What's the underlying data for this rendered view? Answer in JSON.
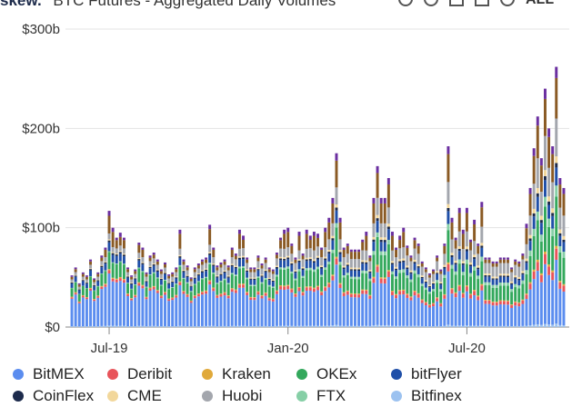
{
  "header": {
    "brand": "skew.",
    "title": "BTC Futures - Aggregated Daily Volumes",
    "range_button": "ALL"
  },
  "chart_data": {
    "type": "bar",
    "stacked": true,
    "ylim": [
      0,
      300
    ],
    "y_ticks": [
      "$0",
      "$100b",
      "$200b",
      "$300b"
    ],
    "y_tick_values": [
      0,
      100,
      200,
      300
    ],
    "x_ticks": [
      "Jul-19",
      "Jan-20",
      "Jul-20"
    ],
    "x_tick_indices": [
      10,
      58,
      106
    ],
    "grid": "horizontal",
    "legend_position": "bottom",
    "series_order": [
      "BitMEX",
      "Deribit",
      "Kraken",
      "OKEx",
      "bitFlyer",
      "CoinFlex",
      "CME",
      "Huobi",
      "FTX",
      "Bitfinex"
    ],
    "stack_order": [
      "Bitfinex",
      "BitMEX",
      "Deribit",
      "Kraken",
      "OKEx",
      "FTX",
      "bitFlyer",
      "CoinFlex",
      "CME",
      "Huobi"
    ],
    "colors": {
      "BitMEX": "#5b8def",
      "Deribit": "#e8545a",
      "Kraken": "#e0a93a",
      "OKEx": "#33a85c",
      "bitFlyer": "#1f4fa8",
      "CoinFlex": "#1d2b4c",
      "CME": "#f2d79b",
      "Huobi": "#a3a6ad",
      "FTX": "#86cfa6",
      "Bitfinex": "#9cc2f0"
    },
    "totals": [
      52,
      60,
      44,
      55,
      52,
      68,
      49,
      55,
      72,
      80,
      117,
      100,
      90,
      95,
      90,
      60,
      52,
      58,
      85,
      80,
      55,
      72,
      75,
      68,
      58,
      65,
      53,
      55,
      60,
      98,
      68,
      62,
      50,
      60,
      64,
      68,
      70,
      103,
      80,
      62,
      65,
      68,
      62,
      80,
      74,
      98,
      92,
      70,
      60,
      60,
      72,
      64,
      70,
      60,
      58,
      75,
      90,
      98,
      100,
      84,
      70,
      96,
      74,
      98,
      92,
      96,
      94,
      80,
      100,
      110,
      130,
      175,
      110,
      80,
      84,
      78,
      78,
      78,
      88,
      96,
      72,
      130,
      162,
      130,
      130,
      150,
      96,
      80,
      92,
      100,
      82,
      72,
      90,
      84,
      66,
      60,
      54,
      58,
      72,
      58,
      84,
      182,
      110,
      90,
      120,
      98,
      120,
      88,
      108,
      84,
      126,
      70,
      70,
      66,
      66,
      70,
      70,
      70,
      60,
      68,
      66,
      74,
      104,
      140,
      180,
      212,
      170,
      240,
      200,
      182,
      262,
      150,
      140
    ]
  },
  "legend": {
    "items": [
      {
        "label": "BitMEX",
        "color": "#5b8def"
      },
      {
        "label": "Deribit",
        "color": "#e8545a"
      },
      {
        "label": "Kraken",
        "color": "#e0a93a"
      },
      {
        "label": "OKEx",
        "color": "#33a85c"
      },
      {
        "label": "bitFlyer",
        "color": "#1f4fa8"
      },
      {
        "label": "CoinFlex",
        "color": "#1d2b4c"
      },
      {
        "label": "CME",
        "color": "#f2d79b"
      },
      {
        "label": "Huobi",
        "color": "#a3a6ad"
      },
      {
        "label": "FTX",
        "color": "#86cfa6"
      },
      {
        "label": "Bitfinex",
        "color": "#9cc2f0"
      }
    ]
  }
}
